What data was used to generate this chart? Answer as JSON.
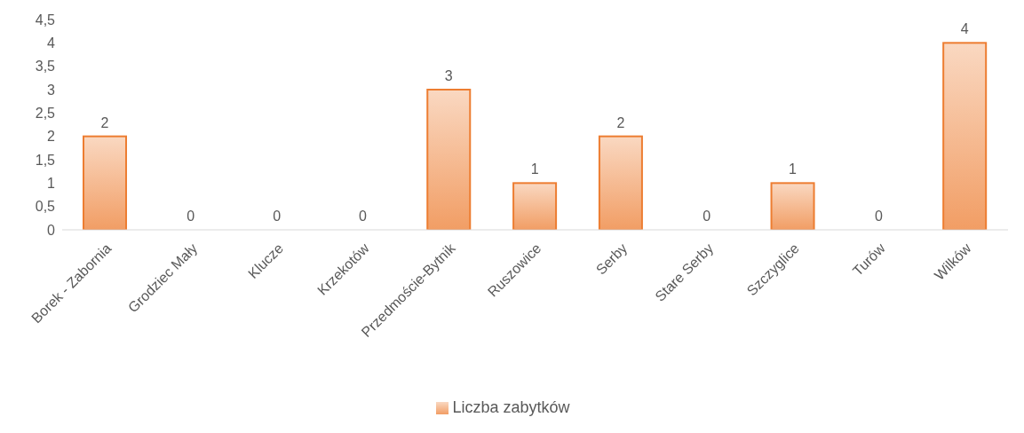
{
  "chart_data": {
    "type": "bar",
    "categories": [
      "Borek - Zabornia",
      "Grodziec Mały",
      "Klucze",
      "Krzekotów",
      "Przedmoście-Bytnik",
      "Ruszowice",
      "Serby",
      "Stare Serby",
      "Szczyglice",
      "Turów",
      "Wilków"
    ],
    "series": [
      {
        "name": "Liczba zabytków",
        "color": "#ed7d31",
        "values": [
          2,
          0,
          0,
          0,
          3,
          1,
          2,
          0,
          1,
          0,
          4
        ]
      }
    ],
    "ylim": [
      0,
      4.5
    ],
    "yticks": [
      0,
      {
        "value": 0.5,
        "label": "0,5"
      },
      1,
      {
        "value": 1.5,
        "label": "1,5"
      },
      2,
      {
        "value": 2.5,
        "label": "2,5"
      },
      3,
      {
        "value": 3.5,
        "label": "3,5"
      },
      4,
      {
        "value": 4.5,
        "label": "4,5"
      }
    ],
    "data_labels": true,
    "grid": false,
    "legend": "bottom"
  }
}
